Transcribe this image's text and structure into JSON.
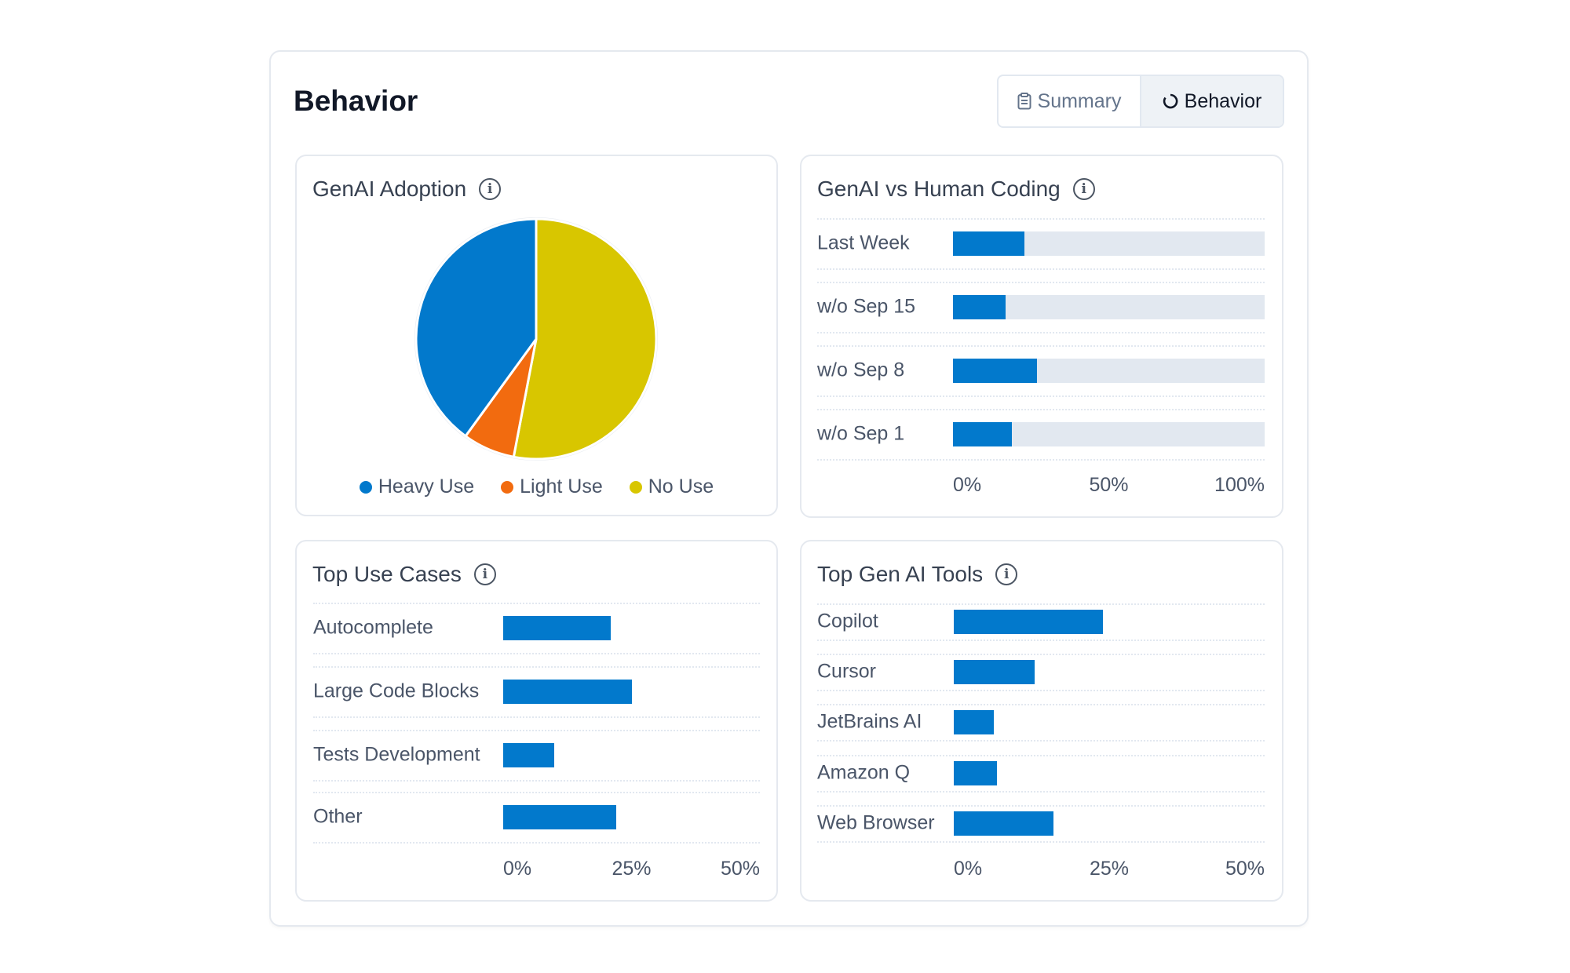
{
  "header": {
    "title": "Behavior"
  },
  "tabs": [
    {
      "label": "Summary",
      "icon": "clipboard-icon",
      "active": false
    },
    {
      "label": "Behavior",
      "icon": "refresh-circle-icon",
      "active": true
    }
  ],
  "colors": {
    "heavy": "#0279CC",
    "light": "#F26B0F",
    "none": "#D8C600",
    "track": "#E2E8F0"
  },
  "chart_data": [
    {
      "type": "pie",
      "title": "GenAI Adoption",
      "slices": [
        {
          "name": "Heavy Use",
          "value": 40
        },
        {
          "name": "Light Use",
          "value": 7
        },
        {
          "name": "No Use",
          "value": 53
        }
      ],
      "legend": "bottom"
    },
    {
      "type": "bar",
      "orientation": "horizontal",
      "title": "GenAI vs Human Coding",
      "categories": [
        "Last Week",
        "w/o Sep 15",
        "w/o Sep 8",
        "w/o Sep 1"
      ],
      "values": [
        23,
        17,
        27,
        19
      ],
      "xlim": [
        0,
        100
      ],
      "ticks": [
        "0%",
        "50%",
        "100%"
      ],
      "stacked_remainder": true
    },
    {
      "type": "bar",
      "orientation": "horizontal",
      "title": "Top Use Cases",
      "categories": [
        "Autocomplete",
        "Large Code Blocks",
        "Tests Development",
        "Other"
      ],
      "values": [
        21,
        25,
        10,
        22
      ],
      "xlim": [
        0,
        50
      ],
      "ticks": [
        "0%",
        "25%",
        "50%"
      ]
    },
    {
      "type": "bar",
      "orientation": "horizontal",
      "title": "Top Gen AI Tools",
      "categories": [
        "Copilot",
        "Cursor",
        "JetBrains AI",
        "Amazon Q",
        "Web Browser"
      ],
      "values": [
        24,
        13,
        6.5,
        7,
        16
      ],
      "xlim": [
        0,
        50
      ],
      "ticks": [
        "0%",
        "25%",
        "50%"
      ]
    }
  ]
}
